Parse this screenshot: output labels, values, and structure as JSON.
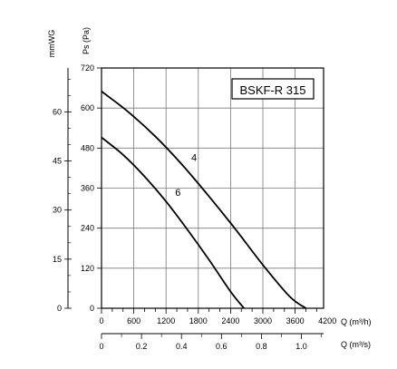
{
  "chart_data": {
    "type": "line",
    "title": "BSKF-R 315",
    "ylabel_left": "Ps (Pa)",
    "ylabel_outer": "mmWG",
    "xlabel_main": "Q (m³/h)",
    "xlabel_secondary": "Q (m³/s)",
    "xlim": [
      0,
      4000
    ],
    "ylim": [
      0,
      720
    ],
    "x_ticks": [
      "0",
      "600",
      "1200",
      "1800",
      "2400",
      "3000",
      "3600",
      "4200"
    ],
    "y_ticks": [
      "0",
      "120",
      "240",
      "360",
      "480",
      "600",
      "720"
    ],
    "secondary_x_ticks": [
      "0",
      "0.2",
      "0.4",
      "0.6",
      "0.8",
      "1.0"
    ],
    "secondary_x_values": [
      0,
      0.2,
      0.4,
      0.6,
      0.8,
      1.0
    ],
    "secondary_x_range": [
      0,
      1.111
    ],
    "outer_y_ticks": [
      "0",
      "15",
      "30",
      "45",
      "60"
    ],
    "outer_y_values": [
      0,
      15,
      30,
      45,
      60
    ],
    "outer_y_range": [
      0,
      73.4
    ],
    "grid": true,
    "series": [
      {
        "name": "4",
        "x": [
          0,
          500,
          1000,
          1500,
          2000,
          2500,
          3000,
          3500,
          3800
        ],
        "y": [
          650,
          588,
          515,
          430,
          335,
          235,
          130,
          35,
          0
        ]
      },
      {
        "name": "6",
        "x": [
          0,
          400,
          800,
          1200,
          1600,
          2000,
          2400,
          2650
        ],
        "y": [
          512,
          460,
          395,
          320,
          235,
          145,
          50,
          0
        ]
      }
    ]
  }
}
